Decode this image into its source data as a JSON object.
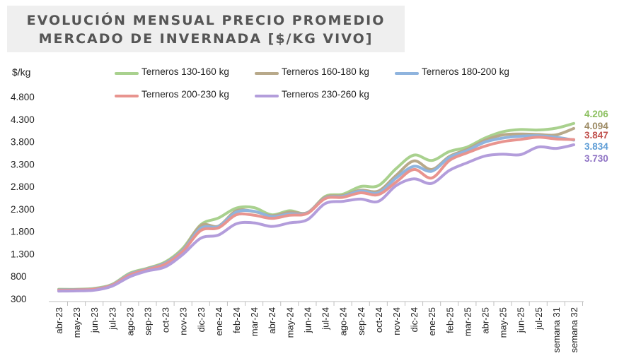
{
  "title": {
    "line1": "EVOLUCIÓN MENSUAL PRECIO PROMEDIO",
    "line2": "MERCADO DE INVERNADA [$/KG VIVO]"
  },
  "chart_data": {
    "type": "line",
    "ylabel": "$/kg",
    "ylim": [
      300,
      4800
    ],
    "yticks": [
      "4.800",
      "4.300",
      "3.800",
      "3.300",
      "2.800",
      "2.300",
      "1.800",
      "1.300",
      "800",
      "300"
    ],
    "categories": [
      "abr-23",
      "may-23",
      "jun-23",
      "jul-23",
      "ago-23",
      "sep-23",
      "oct-23",
      "nov-23",
      "dic-23",
      "ene-24",
      "feb-24",
      "mar-24",
      "abr-24",
      "may-24",
      "jun-24",
      "jul-24",
      "ago-24",
      "sep-24",
      "oct-24",
      "nov-24",
      "dic-24",
      "ene-25",
      "feb-25",
      "mar-25",
      "abr-25",
      "may-25",
      "jun-25",
      "jul-25",
      "semana 31",
      "semana 32"
    ],
    "legend_position": "top",
    "series": [
      {
        "name": "Terneros 130-160 kg",
        "color": "#a9d18e",
        "end_label": "4.206",
        "values": [
          510,
          510,
          530,
          620,
          870,
          980,
          1120,
          1430,
          1950,
          2100,
          2320,
          2330,
          2170,
          2260,
          2210,
          2580,
          2630,
          2800,
          2820,
          3200,
          3500,
          3380,
          3580,
          3680,
          3880,
          4020,
          4070,
          4060,
          4100,
          4206
        ]
      },
      {
        "name": "Terneros 160-180 kg",
        "color": "#b8a98a",
        "end_label": "4.094",
        "values": [
          500,
          505,
          520,
          610,
          850,
          970,
          1100,
          1400,
          1930,
          1920,
          2260,
          2240,
          2150,
          2230,
          2220,
          2560,
          2600,
          2720,
          2700,
          3050,
          3370,
          3180,
          3470,
          3630,
          3830,
          3950,
          3970,
          3960,
          3950,
          4094
        ]
      },
      {
        "name": "Terneros 180-200 kg",
        "color": "#8fb4de",
        "end_label": "3.834",
        "values": [
          495,
          500,
          515,
          605,
          845,
          960,
          1090,
          1380,
          1870,
          1910,
          2230,
          2250,
          2130,
          2190,
          2210,
          2540,
          2580,
          2700,
          2660,
          2990,
          3250,
          3140,
          3450,
          3600,
          3790,
          3880,
          3920,
          3930,
          3900,
          3834
        ]
      },
      {
        "name": "Terneros 200-230 kg",
        "color": "#e8948f",
        "end_label": "3.847",
        "values": [
          490,
          495,
          510,
          600,
          830,
          950,
          1070,
          1360,
          1820,
          1880,
          2170,
          2160,
          2090,
          2160,
          2200,
          2530,
          2560,
          2660,
          2620,
          2900,
          3180,
          2990,
          3380,
          3550,
          3700,
          3800,
          3850,
          3900,
          3860,
          3847
        ]
      },
      {
        "name": "Terneros 230-260 kg",
        "color": "#b39ddb",
        "end_label": "3.730",
        "values": [
          470,
          475,
          490,
          580,
          790,
          920,
          1010,
          1290,
          1650,
          1720,
          1970,
          1990,
          1910,
          1990,
          2060,
          2420,
          2470,
          2520,
          2470,
          2820,
          2970,
          2870,
          3160,
          3330,
          3480,
          3520,
          3510,
          3680,
          3650,
          3730
        ]
      }
    ]
  }
}
